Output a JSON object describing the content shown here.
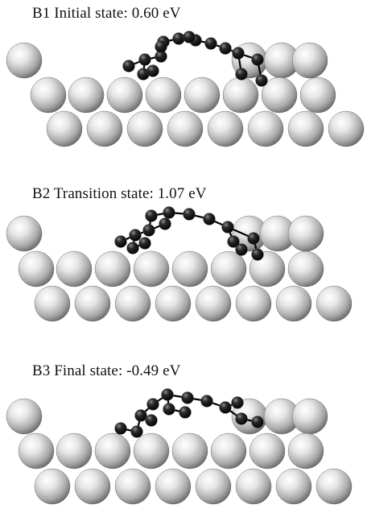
{
  "panels": [
    {
      "id": "b1",
      "label": "B1 Initial state: 0.60 eV"
    },
    {
      "id": "b2",
      "label": "B2 Transition state: 1.07 eV"
    },
    {
      "id": "b3",
      "label": "B3 Final state: -0.49 eV"
    }
  ],
  "colors": {
    "substrate_atom": "#d9d9d9",
    "adsorbate_atom": "#141414",
    "bond": "#000000",
    "background": "#ffffff"
  }
}
